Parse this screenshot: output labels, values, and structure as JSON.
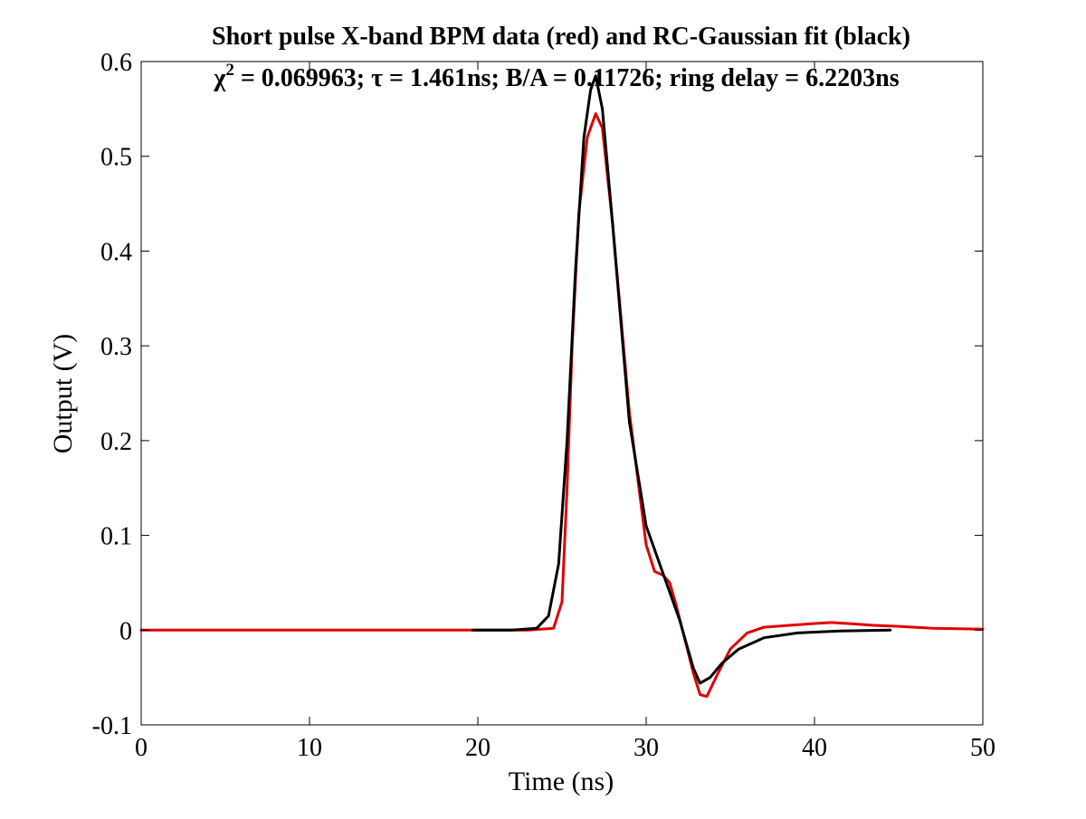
{
  "chart_data": {
    "type": "line",
    "title": "Short pulse X-band BPM data (red) and RC-Gaussian fit (black)",
    "subtitle": {
      "chi_symbol": "χ",
      "chi_exponent": "2",
      "text": " = 0.069963; τ = 1.461ns; B/A = 0.11726; ring delay = 6.2203ns"
    },
    "xlabel": "Time (ns)",
    "ylabel": "Output (V)",
    "xlim": [
      0,
      50
    ],
    "ylim": [
      -0.1,
      0.6
    ],
    "xticks": [
      0,
      10,
      20,
      30,
      40,
      50
    ],
    "xtick_labels": [
      "0",
      "10",
      "20",
      "30",
      "40",
      "50"
    ],
    "yticks": [
      -0.1,
      0,
      0.1,
      0.2,
      0.3,
      0.4,
      0.5,
      0.6
    ],
    "ytick_labels": [
      "-0.1",
      "0",
      "0.1",
      "0.2",
      "0.3",
      "0.4",
      "0.5",
      "0.6"
    ],
    "grid": false,
    "series": [
      {
        "color": "#e00000",
        "x": [
          0,
          5,
          10,
          15,
          20,
          23,
          24.5,
          25,
          25.3,
          25.6,
          26,
          26.5,
          27,
          27.4,
          28,
          29,
          30,
          30.5,
          31,
          31.4,
          31.8,
          32.3,
          32.8,
          33.2,
          33.6,
          34.2,
          35,
          36,
          37,
          38.5,
          40,
          41,
          42,
          43.5,
          45,
          47,
          50
        ],
        "y": [
          0,
          0,
          0,
          0,
          0,
          0,
          0.002,
          0.03,
          0.15,
          0.3,
          0.44,
          0.52,
          0.545,
          0.53,
          0.43,
          0.23,
          0.09,
          0.062,
          0.058,
          0.05,
          0.025,
          -0.01,
          -0.045,
          -0.068,
          -0.07,
          -0.048,
          -0.02,
          -0.003,
          0.003,
          0.005,
          0.007,
          0.008,
          0.007,
          0.005,
          0.004,
          0.002,
          0.001
        ]
      },
      {
        "color": "#000000",
        "x": [
          19.7,
          22,
          23.5,
          24.2,
          24.8,
          25.3,
          25.8,
          26.3,
          26.7,
          27,
          27.4,
          28,
          29,
          30,
          31,
          32,
          32.8,
          33.2,
          33.8,
          34.5,
          35.5,
          37,
          39,
          41.5,
          44.5
        ],
        "y": [
          0,
          0,
          0.002,
          0.015,
          0.07,
          0.2,
          0.38,
          0.52,
          0.57,
          0.585,
          0.55,
          0.43,
          0.22,
          0.11,
          0.06,
          0.01,
          -0.04,
          -0.056,
          -0.05,
          -0.035,
          -0.02,
          -0.008,
          -0.003,
          -0.001,
          0
        ]
      }
    ]
  }
}
